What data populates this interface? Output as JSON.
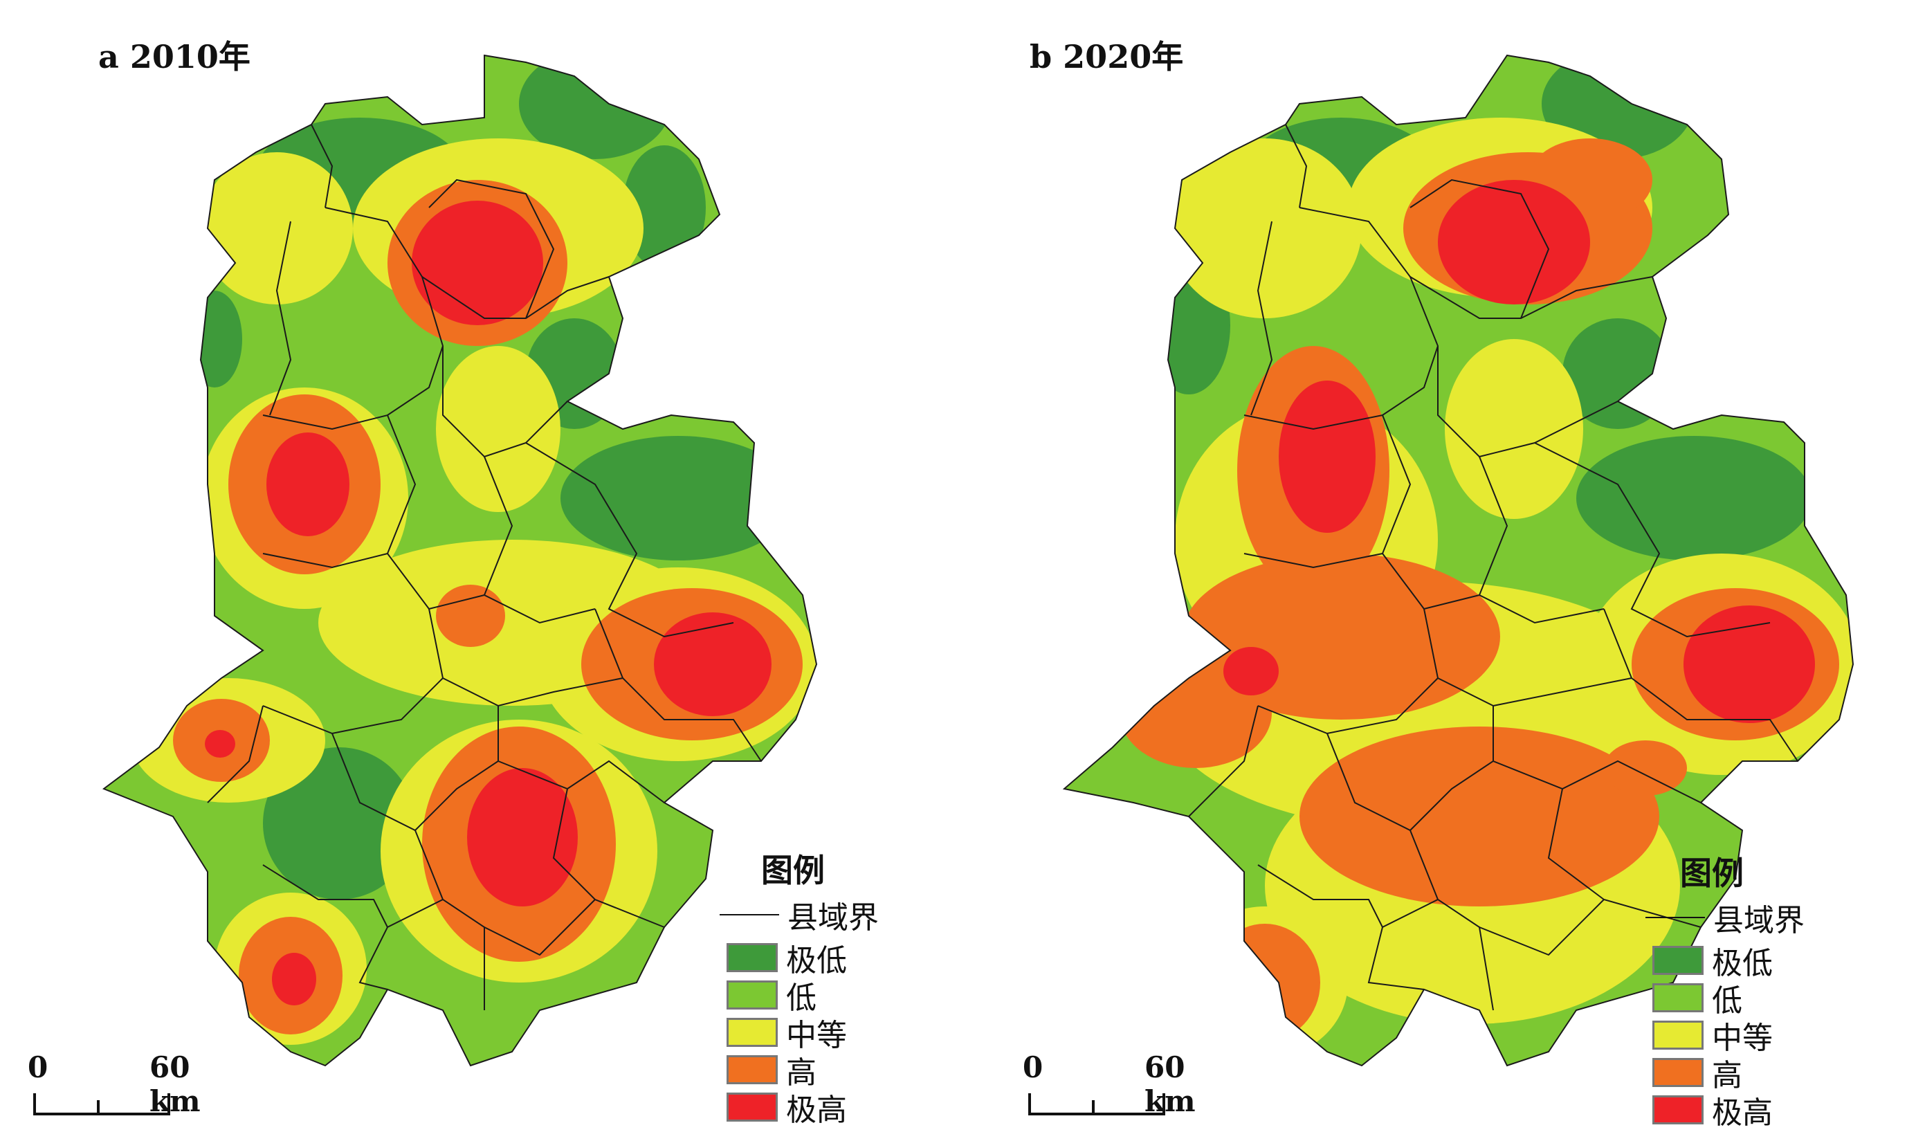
{
  "panels": [
    {
      "id": "a",
      "title": "a 2010年"
    },
    {
      "id": "b",
      "title": "b 2020年"
    }
  ],
  "legend": {
    "title": "图例",
    "boundary_label": "县域界",
    "classes": [
      {
        "label": "极低",
        "color": "#3e9a3a"
      },
      {
        "label": "低",
        "color": "#7cc832"
      },
      {
        "label": "中等",
        "color": "#e6ea32"
      },
      {
        "label": "高",
        "color": "#f07020"
      },
      {
        "label": "极高",
        "color": "#ee2228"
      }
    ]
  },
  "scale_bar": {
    "start": "0",
    "end": "60 km"
  },
  "colors": {
    "boundary": "#1a1a1a",
    "background": "#ffffff"
  }
}
